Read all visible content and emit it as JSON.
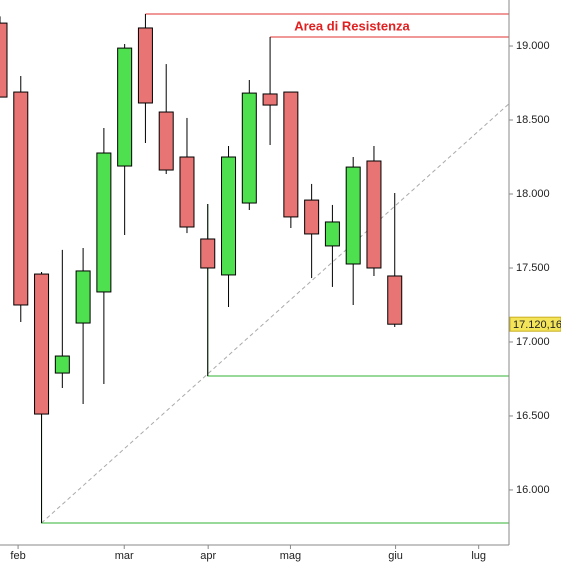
{
  "chart_data": {
    "type": "candlestick",
    "x": [
      0,
      1,
      2,
      3,
      4,
      5,
      6,
      7,
      8,
      9,
      10,
      11,
      12,
      13,
      14,
      15,
      16,
      17,
      18,
      19
    ],
    "open": [
      19155,
      18689,
      17459,
      16790,
      17128,
      17338,
      18189,
      19122,
      18554,
      18250,
      17696,
      17453,
      17939,
      18676,
      18689,
      17959,
      17649,
      17527,
      18223,
      17446
    ],
    "high": [
      19200,
      18797,
      17473,
      17622,
      17635,
      18446,
      19014,
      19216,
      18878,
      18514,
      17932,
      18324,
      18770,
      19061,
      18689,
      18068,
      17926,
      18250,
      18324,
      18007
    ],
    "low": [
      18655,
      17135,
      15777,
      16689,
      16581,
      16716,
      17723,
      18345,
      18135,
      17736,
      16770,
      17236,
      17892,
      18331,
      17770,
      17432,
      17372,
      17250,
      17446,
      17101
    ],
    "close": [
      18655,
      17250,
      16513,
      16905,
      17480,
      18277,
      18986,
      18615,
      18162,
      17777,
      17500,
      18250,
      18682,
      18601,
      17845,
      17730,
      17811,
      18182,
      17500,
      17120.16
    ],
    "up_color": "#4fe04f",
    "down_color": "#e87474",
    "last_label": "17.120,16",
    "xlim": [
      0,
      24.5
    ],
    "ylim": [
      15628,
      19311
    ],
    "xticks": [
      {
        "value": 0.87,
        "label": "feb"
      },
      {
        "value": 5.98,
        "label": "mar"
      },
      {
        "value": 10.02,
        "label": "apr"
      },
      {
        "value": 13.98,
        "label": "mag"
      },
      {
        "value": 19.04,
        "label": "giu"
      },
      {
        "value": 23.04,
        "label": "lug"
      }
    ],
    "yticks": [
      {
        "value": 16000,
        "label": "16.000"
      },
      {
        "value": 16500,
        "label": "16.500"
      },
      {
        "value": 17000,
        "label": "17.000"
      },
      {
        "value": 17500,
        "label": "17.500"
      },
      {
        "value": 18000,
        "label": "18.000"
      },
      {
        "value": 18500,
        "label": "18.500"
      },
      {
        "value": 19000,
        "label": "19.000"
      }
    ],
    "levels": [
      {
        "x": 7,
        "value": 19216,
        "color": "#e03030"
      },
      {
        "x": 13,
        "value": 19061,
        "color": "#e03030"
      },
      {
        "x": 10,
        "value": 16770,
        "color": "#30b030"
      },
      {
        "x": 2,
        "value": 15777,
        "color": "#30b030"
      }
    ],
    "trend": {
      "x": [
        2,
        24.5
      ],
      "values": [
        15777,
        18610
      ]
    },
    "annotation": "Area di Resistenza"
  }
}
